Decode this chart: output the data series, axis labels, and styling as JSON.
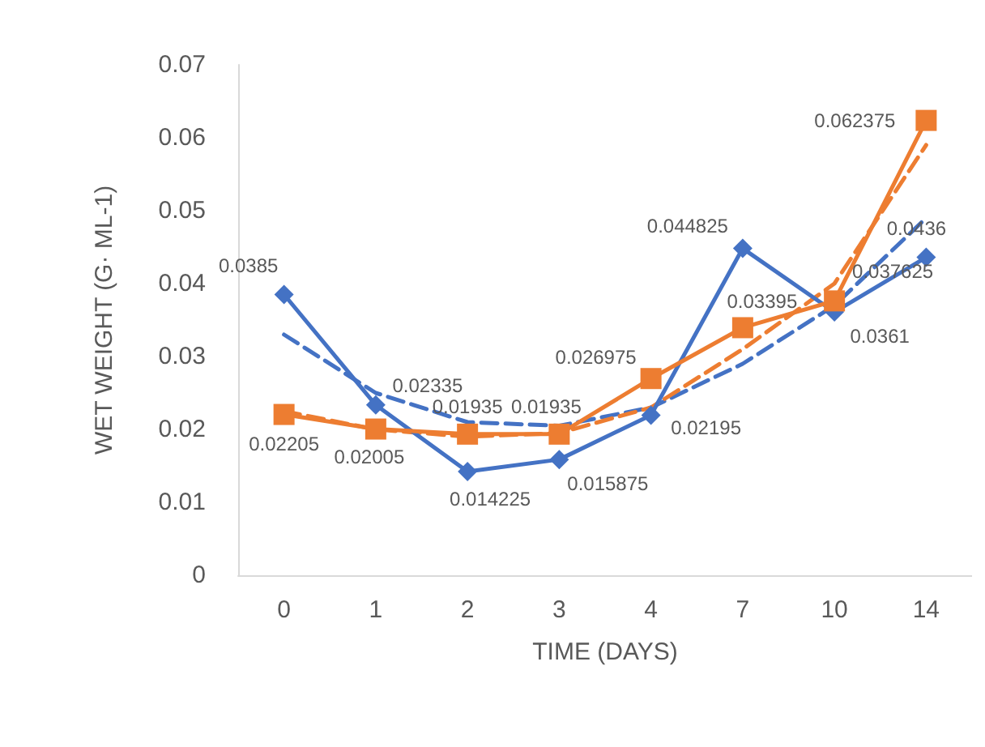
{
  "chart_data": {
    "type": "line",
    "xlabel": "TIME (DAYS)",
    "ylabel": "WET WEIGHT (G· ML-1)",
    "categories": [
      "0",
      "1",
      "2",
      "3",
      "4",
      "7",
      "10",
      "14"
    ],
    "ylim": [
      0,
      0.07
    ],
    "yticks": [
      0,
      0.01,
      0.02,
      0.03,
      0.04,
      0.05,
      0.06,
      0.07
    ],
    "grid": false,
    "series": [
      {
        "color": "#4472c4",
        "marker": "diamond",
        "line_style": "solid",
        "values": [
          0.0385,
          0.02335,
          0.014225,
          0.015875,
          0.02195,
          0.044825,
          0.0361,
          0.0436
        ],
        "value_labels": [
          "0.0385",
          "0.02335",
          "0.014225",
          "0.015875",
          "0.02195",
          "0.044825",
          "0.0361",
          "0.0436"
        ]
      },
      {
        "color": "#ed7d31",
        "marker": "square",
        "line_style": "solid",
        "values": [
          0.02205,
          0.02005,
          0.01935,
          0.01935,
          0.026975,
          0.03395,
          0.037625,
          0.062375
        ],
        "value_labels": [
          "0.02205",
          "0.02005",
          "0.01935",
          "0.01935",
          "0.026975",
          "0.03395",
          "0.037625",
          "0.062375"
        ]
      },
      {
        "color": "#4472c4",
        "marker": "none",
        "line_style": "dashed",
        "values": [
          0.033,
          0.025,
          0.021,
          0.0205,
          0.023,
          0.029,
          0.037,
          0.049
        ]
      },
      {
        "color": "#ed7d31",
        "marker": "none",
        "line_style": "dashed",
        "values": [
          0.0225,
          0.02,
          0.019,
          0.0195,
          0.023,
          0.031,
          0.04,
          0.059
        ]
      }
    ]
  }
}
